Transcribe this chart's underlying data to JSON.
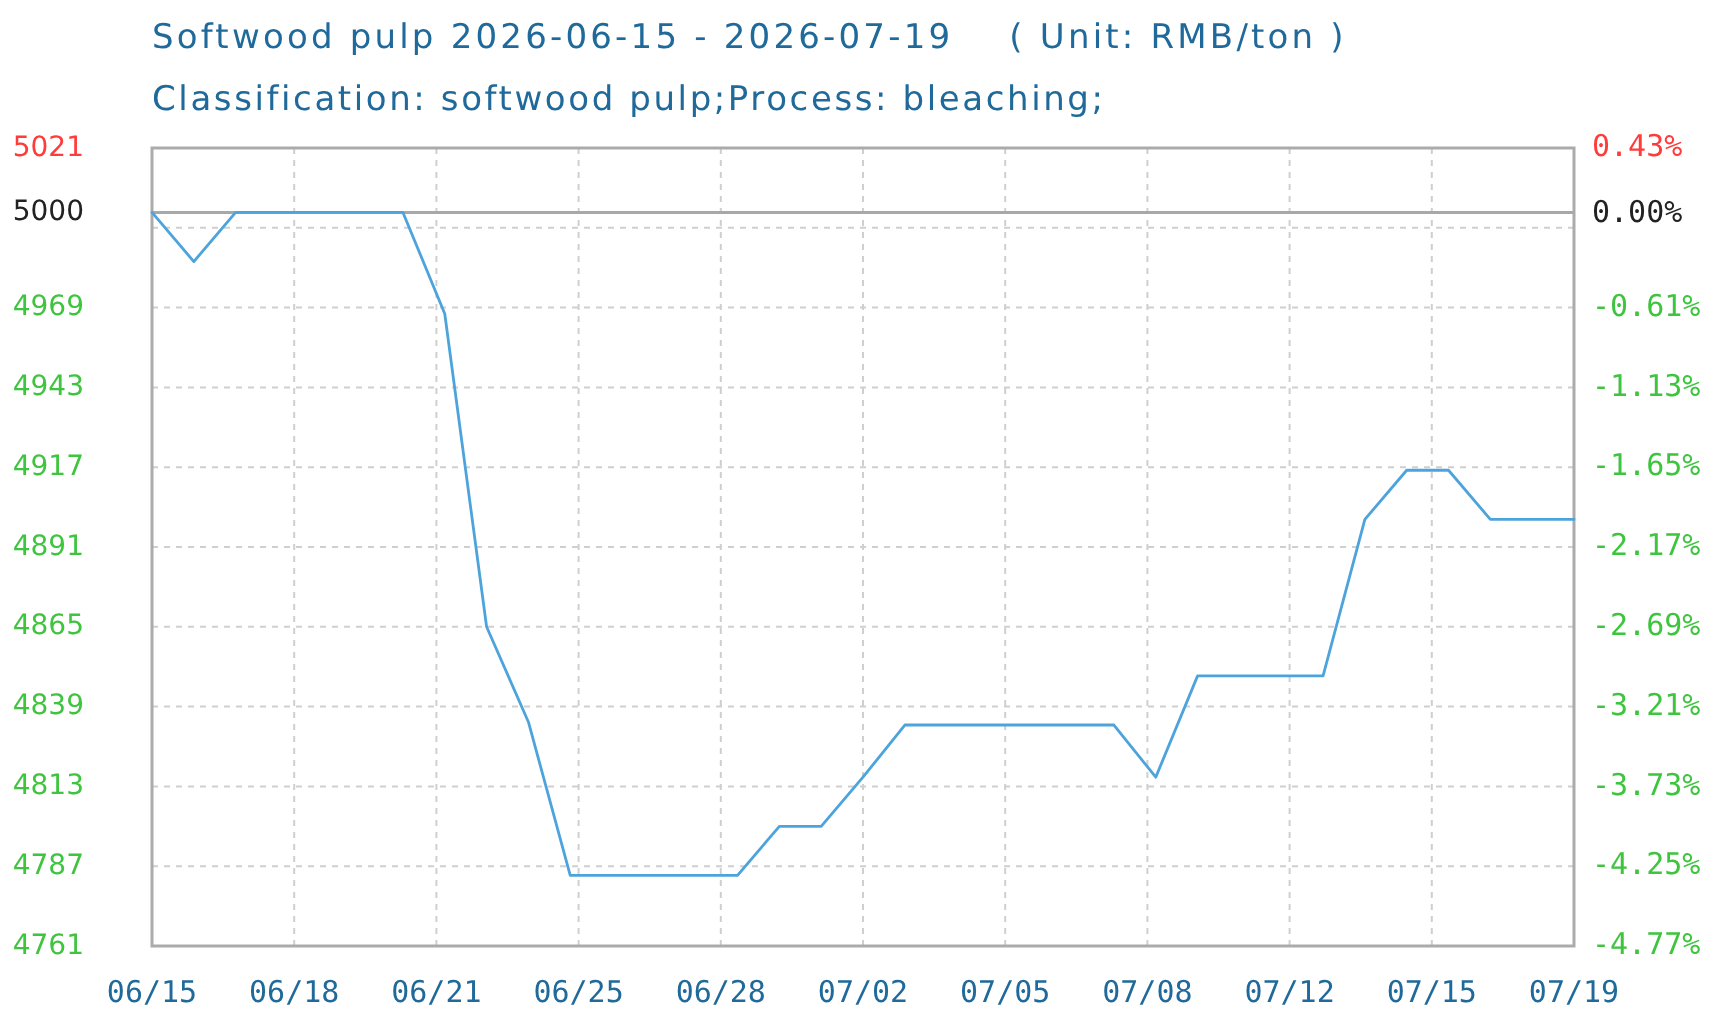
{
  "chart_data": {
    "type": "line",
    "title": "Softwood pulp 2026-06-15 - 2026-07-19    ( Unit: RMB/ton )",
    "subtitle": "Classification: softwood pulp;Process: bleaching;",
    "x": [
      "2026-06-15",
      "2026-06-16",
      "2026-06-17",
      "2026-06-18",
      "2026-06-19",
      "2026-06-20",
      "2026-06-21",
      "2026-06-22",
      "2026-06-23",
      "2026-06-24",
      "2026-06-25",
      "2026-06-26",
      "2026-06-27",
      "2026-06-28",
      "2026-06-29",
      "2026-06-30",
      "2026-07-01",
      "2026-07-02",
      "2026-07-03",
      "2026-07-04",
      "2026-07-05",
      "2026-07-06",
      "2026-07-07",
      "2026-07-08",
      "2026-07-09",
      "2026-07-10",
      "2026-07-11",
      "2026-07-12",
      "2026-07-13",
      "2026-07-14",
      "2026-07-15",
      "2026-07-16",
      "2026-07-17",
      "2026-07-18",
      "2026-07-19"
    ],
    "values": [
      5000,
      4984,
      5000,
      5000,
      5000,
      5000,
      5000,
      4967,
      4865,
      4834,
      4784,
      4784,
      4784,
      4784,
      4784,
      4800,
      4800,
      4816,
      4833,
      4833,
      4833,
      4833,
      4833,
      4833,
      4816,
      4849,
      4849,
      4849,
      4849,
      4900,
      4916,
      4916,
      4900,
      4900,
      4900
    ],
    "color": "#4da3dc",
    "xlim": [
      "2026-06-15",
      "2026-07-19"
    ],
    "xticks": [
      {
        "value": "2026-06-15",
        "label": "06/15"
      },
      {
        "value": "2026-06-18T09:36",
        "label": "06/18"
      },
      {
        "value": "2026-06-21T19:12",
        "label": "06/21"
      },
      {
        "value": "2026-06-25T04:48",
        "label": "06/25"
      },
      {
        "value": "2026-06-28T14:24",
        "label": "06/28"
      },
      {
        "value": "2026-07-02T00:00",
        "label": "07/02"
      },
      {
        "value": "2026-07-05T09:36",
        "label": "07/05"
      },
      {
        "value": "2026-07-08T19:12",
        "label": "07/08"
      },
      {
        "value": "2026-07-12T04:48",
        "label": "07/12"
      },
      {
        "value": "2026-07-15T14:24",
        "label": "07/15"
      },
      {
        "value": "2026-07-19",
        "label": "07/19"
      }
    ],
    "ylim": [
      4761,
      5021
    ],
    "yticks": [
      5021,
      5000,
      {
        "value": 4995,
        "label": null
      },
      4969,
      4943,
      4917,
      4891,
      4865,
      4839,
      4813,
      4787,
      4761
    ],
    "y2lim": [
      -4.77,
      0.43
    ],
    "y2ticks": [
      {
        "value": 0.43,
        "label": "0.43%"
      },
      {
        "value": 0,
        "label": "0.00%"
      },
      {
        "value": -0.61,
        "label": "-0.61%"
      },
      {
        "value": -1.13,
        "label": "-1.13%"
      },
      {
        "value": -1.65,
        "label": "-1.65%"
      },
      {
        "value": -2.17,
        "label": "-2.17%"
      },
      {
        "value": -2.69,
        "label": "-2.69%"
      },
      {
        "value": -3.21,
        "label": "-3.21%"
      },
      {
        "value": -3.73,
        "label": "-3.73%"
      },
      {
        "value": -4.25,
        "label": "-4.25%"
      },
      {
        "value": -4.77,
        "label": "-4.77%"
      }
    ],
    "ref_lines": [
      {
        "axis": "y",
        "value": 5000,
        "color": "#a8a8a8"
      }
    ],
    "grid": true
  }
}
